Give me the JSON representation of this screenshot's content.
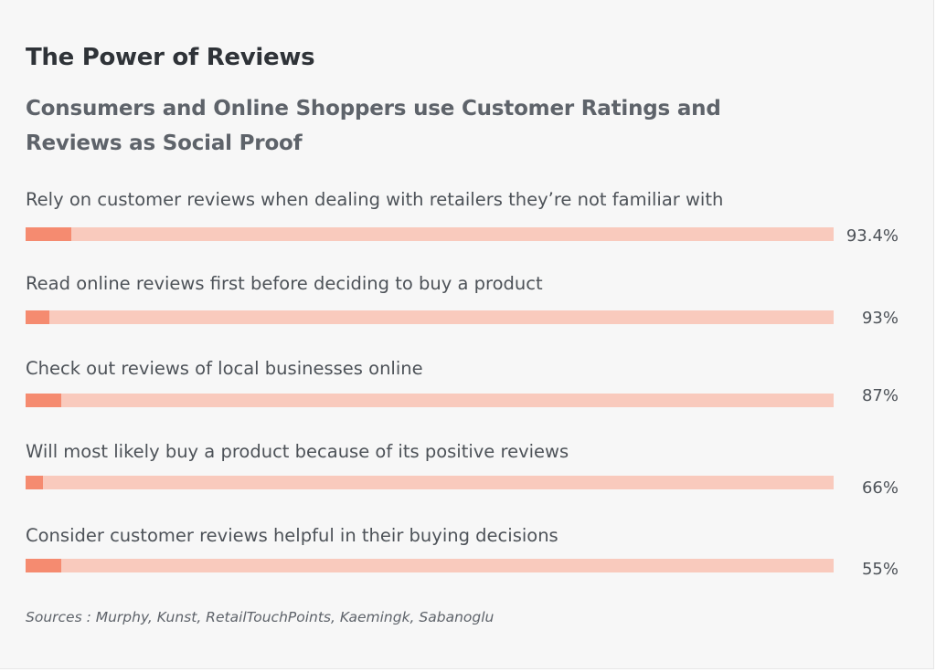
{
  "colors": {
    "background": "#f7f7f7",
    "title": "#2f3338",
    "subtitle": "#5e636a",
    "text": "#4d5258",
    "bar_track": "#f9cabd",
    "bar_fill": "#f58b70"
  },
  "chart_data": {
    "type": "bar",
    "orientation": "horizontal",
    "title": "The Power of Reviews",
    "subtitle": "Consumers and Online Shoppers use Customer Ratings and Reviews as Social Proof",
    "categories": [
      "Rely on customer reviews when dealing with retailers they’re not familiar with",
      "Read online reviews first before deciding to buy a product",
      "Check out reviews of local businesses online",
      "Will most likely buy a product because of its positive reviews",
      "Consider customer reviews helpful in their buying decisions"
    ],
    "values": [
      93.4,
      93,
      87,
      66,
      55
    ],
    "value_labels": [
      "93.4%",
      "93%",
      "87%",
      "66%",
      "55%"
    ],
    "highlight_fraction": [
      0.057,
      0.029,
      0.044,
      0.022,
      0.044
    ],
    "xlim": [
      0,
      100
    ],
    "grid": false,
    "legend": "none",
    "source": "Sources : Murphy, Kunst, RetailTouchPoints, Kaemingk, Sabanoglu"
  }
}
